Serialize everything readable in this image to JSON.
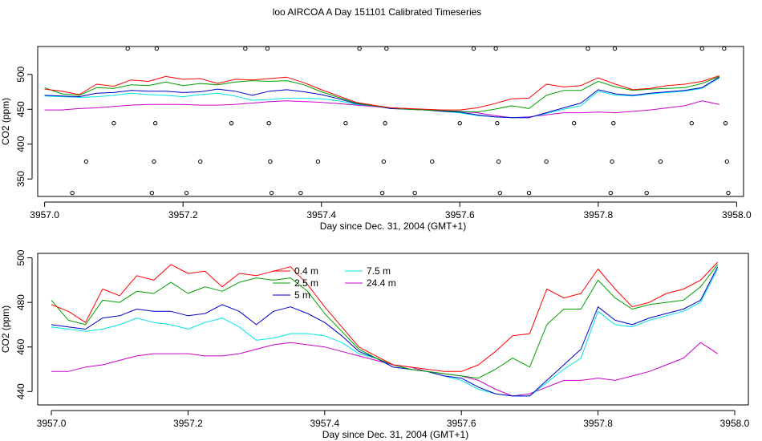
{
  "title": "loo AIRCOA A  Day 151101  Calibrated Timeseries",
  "series_colors": {
    "0.4 m": "#ff0000",
    "2.5 m": "#00a000",
    "5 m": "#0000c8",
    "7.5 m": "#00e5e5",
    "24.4 m": "#cc00cc"
  },
  "chart_data": [
    {
      "type": "line",
      "title": "loo AIRCOA A  Day 151101  Calibrated Timeseries",
      "xlabel": "Day since Dec. 31, 2004 (GMT+1)",
      "ylabel": "CO2 (ppm)",
      "xlim": [
        3956.99,
        3958.01
      ],
      "ylim": [
        325,
        540
      ],
      "xticks": [
        3957.0,
        3957.2,
        3957.4,
        3957.6,
        3957.8,
        3958.0
      ],
      "yticks": [
        350,
        400,
        450,
        500
      ],
      "x": [
        3957.0,
        3957.025,
        3957.05,
        3957.075,
        3957.1,
        3957.125,
        3957.15,
        3957.175,
        3957.2,
        3957.225,
        3957.25,
        3957.275,
        3957.3,
        3957.325,
        3957.35,
        3957.375,
        3957.4,
        3957.425,
        3957.45,
        3957.475,
        3957.5,
        3957.525,
        3957.55,
        3957.575,
        3957.6,
        3957.625,
        3957.65,
        3957.675,
        3957.7,
        3957.725,
        3957.75,
        3957.775,
        3957.8,
        3957.825,
        3957.85,
        3957.875,
        3957.9,
        3957.925,
        3957.95,
        3957.975
      ],
      "series": [
        {
          "name": "0.4 m",
          "values": [
            479,
            476,
            471,
            486,
            483,
            492,
            490,
            497,
            493,
            494,
            487,
            493,
            492,
            494,
            496,
            488,
            478,
            469,
            460,
            456,
            452,
            451,
            450,
            449,
            449,
            452,
            458,
            465,
            466,
            486,
            482,
            484,
            495,
            486,
            478,
            480,
            484,
            486,
            490,
            498
          ]
        },
        {
          "name": "2.5 m",
          "values": [
            481,
            472,
            470,
            481,
            480,
            485,
            484,
            489,
            484,
            487,
            485,
            489,
            491,
            490,
            491,
            485,
            475,
            467,
            459,
            455,
            452,
            450,
            449,
            448,
            447,
            446,
            450,
            455,
            451,
            470,
            477,
            477,
            490,
            482,
            477,
            479,
            480,
            481,
            487,
            497
          ]
        },
        {
          "name": "5 m",
          "values": [
            470,
            469,
            468,
            473,
            474,
            477,
            476,
            476,
            474,
            475,
            479,
            476,
            470,
            476,
            478,
            475,
            471,
            465,
            458,
            455,
            451,
            450,
            449,
            447,
            446,
            442,
            439,
            438,
            438,
            445,
            452,
            459,
            478,
            472,
            470,
            473,
            475,
            477,
            481,
            496
          ]
        },
        {
          "name": "7.5 m",
          "values": [
            469,
            468,
            467,
            468,
            470,
            473,
            471,
            470,
            468,
            471,
            473,
            469,
            463,
            464,
            466,
            466,
            465,
            462,
            457,
            455,
            451,
            450,
            449,
            447,
            445,
            441,
            439,
            438,
            438,
            444,
            450,
            455,
            476,
            470,
            469,
            472,
            474,
            476,
            480,
            495
          ]
        },
        {
          "name": "24.4 m",
          "values": [
            449,
            449,
            451,
            452,
            454,
            456,
            457,
            457,
            457,
            456,
            456,
            457,
            459,
            461,
            462,
            461,
            460,
            458,
            456,
            454,
            452,
            451,
            449,
            448,
            447,
            445,
            441,
            438,
            439,
            442,
            445,
            445,
            446,
            445,
            447,
            449,
            452,
            455,
            462,
            457
          ]
        }
      ],
      "status_points": [
        {
          "x": 3957.04,
          "y": 330
        },
        {
          "x": 3957.06,
          "y": 375
        },
        {
          "x": 3957.1,
          "y": 430
        },
        {
          "x": 3957.12,
          "y": 537
        },
        {
          "x": 3957.155,
          "y": 330
        },
        {
          "x": 3957.158,
          "y": 375
        },
        {
          "x": 3957.16,
          "y": 430
        },
        {
          "x": 3957.162,
          "y": 537
        },
        {
          "x": 3957.205,
          "y": 330
        },
        {
          "x": 3957.225,
          "y": 375
        },
        {
          "x": 3957.27,
          "y": 430
        },
        {
          "x": 3957.29,
          "y": 537
        },
        {
          "x": 3957.322,
          "y": 537
        },
        {
          "x": 3957.324,
          "y": 430
        },
        {
          "x": 3957.326,
          "y": 375
        },
        {
          "x": 3957.328,
          "y": 330
        },
        {
          "x": 3957.37,
          "y": 330
        },
        {
          "x": 3957.395,
          "y": 375
        },
        {
          "x": 3957.435,
          "y": 430
        },
        {
          "x": 3957.455,
          "y": 537
        },
        {
          "x": 3957.488,
          "y": 330
        },
        {
          "x": 3957.49,
          "y": 375
        },
        {
          "x": 3957.492,
          "y": 430
        },
        {
          "x": 3957.494,
          "y": 537
        },
        {
          "x": 3957.535,
          "y": 330
        },
        {
          "x": 3957.56,
          "y": 375
        },
        {
          "x": 3957.6,
          "y": 430
        },
        {
          "x": 3957.62,
          "y": 537
        },
        {
          "x": 3957.652,
          "y": 537
        },
        {
          "x": 3957.654,
          "y": 430
        },
        {
          "x": 3957.656,
          "y": 375
        },
        {
          "x": 3957.658,
          "y": 330
        },
        {
          "x": 3957.7,
          "y": 330
        },
        {
          "x": 3957.725,
          "y": 375
        },
        {
          "x": 3957.765,
          "y": 430
        },
        {
          "x": 3957.785,
          "y": 537
        },
        {
          "x": 3957.818,
          "y": 330
        },
        {
          "x": 3957.82,
          "y": 375
        },
        {
          "x": 3957.822,
          "y": 430
        },
        {
          "x": 3957.824,
          "y": 537
        },
        {
          "x": 3957.87,
          "y": 330
        },
        {
          "x": 3957.89,
          "y": 375
        },
        {
          "x": 3957.935,
          "y": 430
        },
        {
          "x": 3957.95,
          "y": 537
        },
        {
          "x": 3957.982,
          "y": 537
        },
        {
          "x": 3957.984,
          "y": 430
        },
        {
          "x": 3957.986,
          "y": 375
        },
        {
          "x": 3957.988,
          "y": 330
        }
      ]
    },
    {
      "type": "line",
      "xlabel": "Day since Dec. 31, 2004 (GMT+1)",
      "ylabel": "CO2 (ppm)",
      "xlim": [
        3956.98,
        3958.02
      ],
      "ylim": [
        434,
        502
      ],
      "xticks": [
        3957.0,
        3957.2,
        3957.4,
        3957.6,
        3957.8,
        3958.0
      ],
      "yticks": [
        440,
        460,
        480,
        500
      ],
      "legend": [
        "0.4 m",
        "2.5 m",
        "5 m",
        "7.5 m",
        "24.4 m"
      ],
      "legend_placement": "top-center",
      "x": [
        3957.0,
        3957.025,
        3957.05,
        3957.075,
        3957.1,
        3957.125,
        3957.15,
        3957.175,
        3957.2,
        3957.225,
        3957.25,
        3957.275,
        3957.3,
        3957.325,
        3957.35,
        3957.375,
        3957.4,
        3957.425,
        3957.45,
        3957.475,
        3957.5,
        3957.525,
        3957.55,
        3957.575,
        3957.6,
        3957.625,
        3957.65,
        3957.675,
        3957.7,
        3957.725,
        3957.75,
        3957.775,
        3957.8,
        3957.825,
        3957.85,
        3957.875,
        3957.9,
        3957.925,
        3957.95,
        3957.975
      ],
      "series": [
        {
          "name": "0.4 m",
          "values": [
            479,
            476,
            471,
            486,
            483,
            492,
            490,
            497,
            493,
            494,
            487,
            493,
            492,
            494,
            496,
            488,
            478,
            469,
            460,
            456,
            452,
            451,
            450,
            449,
            449,
            452,
            458,
            465,
            466,
            486,
            482,
            484,
            495,
            486,
            478,
            480,
            484,
            486,
            490,
            498
          ]
        },
        {
          "name": "2.5 m",
          "values": [
            481,
            472,
            470,
            481,
            480,
            485,
            484,
            489,
            484,
            487,
            485,
            489,
            491,
            490,
            491,
            485,
            475,
            467,
            459,
            455,
            452,
            450,
            449,
            448,
            447,
            446,
            450,
            455,
            451,
            470,
            477,
            477,
            490,
            482,
            477,
            479,
            480,
            481,
            487,
            497
          ]
        },
        {
          "name": "5 m",
          "values": [
            470,
            469,
            468,
            473,
            474,
            477,
            476,
            476,
            474,
            475,
            479,
            476,
            470,
            476,
            478,
            475,
            471,
            465,
            458,
            455,
            451,
            450,
            449,
            447,
            446,
            442,
            439,
            438,
            438,
            445,
            452,
            459,
            478,
            472,
            470,
            473,
            475,
            477,
            481,
            496
          ]
        },
        {
          "name": "7.5 m",
          "values": [
            469,
            468,
            467,
            468,
            470,
            473,
            471,
            470,
            468,
            471,
            473,
            469,
            463,
            464,
            466,
            466,
            465,
            462,
            457,
            455,
            451,
            450,
            449,
            447,
            445,
            441,
            439,
            438,
            438,
            444,
            450,
            455,
            476,
            470,
            469,
            472,
            474,
            476,
            480,
            495
          ]
        },
        {
          "name": "24.4 m",
          "values": [
            449,
            449,
            451,
            452,
            454,
            456,
            457,
            457,
            457,
            456,
            456,
            457,
            459,
            461,
            462,
            461,
            460,
            458,
            456,
            454,
            452,
            451,
            449,
            448,
            447,
            445,
            441,
            438,
            439,
            442,
            445,
            445,
            446,
            445,
            447,
            449,
            452,
            455,
            462,
            457
          ]
        }
      ]
    }
  ]
}
